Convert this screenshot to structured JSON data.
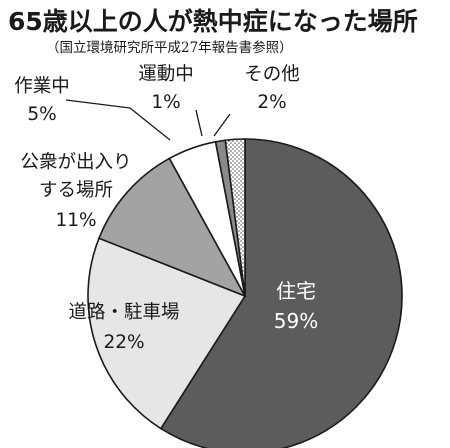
{
  "title": "65歳以上の人が熱中症になった場所",
  "subtitle": "（国立環境研究所平成27年報告書参照）",
  "chart_data": {
    "type": "pie",
    "slices": [
      {
        "label_lines": [
          "住宅"
        ],
        "value_text": "59%",
        "value": 59,
        "fill": "#5c5c5c",
        "inside": true
      },
      {
        "label_lines": [
          "道路・駐車場"
        ],
        "value_text": "22%",
        "value": 22,
        "fill": "#e6e6e6",
        "inside": false
      },
      {
        "label_lines": [
          "公衆が出入り",
          "する場所"
        ],
        "value_text": "11%",
        "value": 11,
        "fill": "#a3a3a3",
        "inside": false
      },
      {
        "label_lines": [
          "作業中"
        ],
        "value_text": "5%",
        "value": 5,
        "fill": "#ffffff",
        "inside": false
      },
      {
        "label_lines": [
          "運動中"
        ],
        "value_text": "1%",
        "value": 1,
        "fill": "#8a8a8a",
        "inside": false
      },
      {
        "label_lines": [
          "その他"
        ],
        "value_text": "2%",
        "value": 2,
        "fill": "dotted",
        "inside": false
      }
    ]
  }
}
